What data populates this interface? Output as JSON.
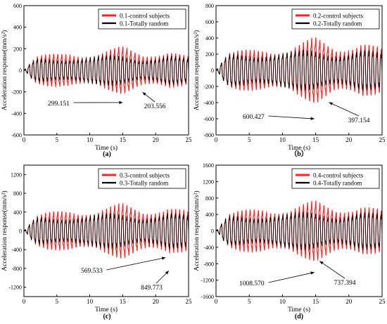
{
  "chart_data": [
    {
      "type": "line",
      "panel_label": "(a)",
      "xlabel": "Time (s)",
      "ylabel": "Acceleration response(mm/s²)",
      "xlim": [
        0,
        25
      ],
      "ylim": [
        -600,
        600
      ],
      "xticks": [
        0,
        5,
        10,
        15,
        20,
        25
      ],
      "yticks": [
        -600,
        -400,
        -200,
        0,
        200,
        400,
        600
      ],
      "legend_position": "top-right",
      "series": [
        {
          "name": "0.1-control subjects",
          "color": "#ff2020",
          "peak_envelope": [
            [
              0,
              40
            ],
            [
              2,
              150
            ],
            [
              7,
              240
            ],
            [
              11,
              200
            ],
            [
              15,
              270
            ],
            [
              18,
              210
            ],
            [
              22,
              260
            ],
            [
              25,
              150
            ]
          ]
        },
        {
          "name": "0.1-Totally random",
          "color": "#000000",
          "peak_envelope": [
            [
              0,
              30
            ],
            [
              2,
              130
            ],
            [
              7,
              170
            ],
            [
              11,
              160
            ],
            [
              15,
              180
            ],
            [
              18,
              160
            ],
            [
              22,
              175
            ],
            [
              25,
              130
            ]
          ]
        }
      ],
      "annotations": [
        {
          "text": "299.151",
          "x": 15.0,
          "y": -299.151
        },
        {
          "text": "203.556",
          "x": 18.0,
          "y": -203.556
        }
      ]
    },
    {
      "type": "line",
      "panel_label": "（b）",
      "xlabel": "Time (s)",
      "ylabel": "Acceleration response(mm/s²)",
      "xlim": [
        0,
        25
      ],
      "ylim": [
        -800,
        800
      ],
      "xticks": [
        0,
        5,
        10,
        15,
        20,
        25
      ],
      "yticks": [
        -800,
        -600,
        -400,
        -200,
        0,
        200,
        400,
        600,
        800
      ],
      "legend_position": "top-right",
      "series": [
        {
          "name": "0.2-control subjects",
          "color": "#ff2020",
          "peak_envelope": [
            [
              0,
              60
            ],
            [
              2,
              250
            ],
            [
              7,
              400
            ],
            [
              11,
              350
            ],
            [
              15,
              500
            ],
            [
              18,
              380
            ],
            [
              22,
              520
            ],
            [
              25,
              320
            ]
          ]
        },
        {
          "name": "0.2-Totally random",
          "color": "#000000",
          "peak_envelope": [
            [
              0,
              40
            ],
            [
              2,
              250
            ],
            [
              7,
              300
            ],
            [
              11,
              280
            ],
            [
              15,
              330
            ],
            [
              18,
              300
            ],
            [
              22,
              330
            ],
            [
              25,
              250
            ]
          ]
        }
      ],
      "annotations": [
        {
          "text": "600.427",
          "x": 14.8,
          "y": -600.427
        },
        {
          "text": "397.154",
          "x": 17.0,
          "y": -397.154
        }
      ]
    },
    {
      "type": "line",
      "panel_label": "(c)",
      "xlabel": "Time (s)",
      "ylabel": "Acceleration response(mm/s²)",
      "xlim": [
        0,
        25
      ],
      "ylim": [
        -1400,
        1400
      ],
      "xticks": [
        0,
        5,
        10,
        15,
        20,
        25
      ],
      "yticks": [
        -1200,
        -800,
        -400,
        0,
        400,
        800,
        1200
      ],
      "legend_position": "top-right",
      "series": [
        {
          "name": "0.3-control subjects",
          "color": "#ff2020",
          "peak_envelope": [
            [
              0,
              80
            ],
            [
              2,
              380
            ],
            [
              7,
              680
            ],
            [
              11,
              560
            ],
            [
              15,
              720
            ],
            [
              18,
              600
            ],
            [
              22,
              760
            ],
            [
              25,
              500
            ]
          ]
        },
        {
          "name": "0.3-Totally random",
          "color": "#000000",
          "peak_envelope": [
            [
              0,
              60
            ],
            [
              2,
              350
            ],
            [
              7,
              450
            ],
            [
              11,
              430
            ],
            [
              15,
              480
            ],
            [
              18,
              450
            ],
            [
              22,
              500
            ],
            [
              25,
              400
            ]
          ]
        }
      ],
      "annotations": [
        {
          "text": "569.533",
          "x": 21.5,
          "y": -569.533
        },
        {
          "text": "849.773",
          "x": 22.0,
          "y": -849.773
        }
      ]
    },
    {
      "type": "line",
      "panel_label": "(d)",
      "xlabel": "Time (s)",
      "ylabel": "Acceleration response(mm/s²)",
      "xlim": [
        0,
        25
      ],
      "ylim": [
        -1600,
        1600
      ],
      "xticks": [
        0,
        5,
        10,
        15,
        20,
        25
      ],
      "yticks": [
        -1600,
        -1200,
        -800,
        -400,
        0,
        400,
        800,
        1200,
        1600
      ],
      "legend_position": "top-right",
      "series": [
        {
          "name": "0.4-control subjects",
          "color": "#ff2020",
          "peak_envelope": [
            [
              0,
              100
            ],
            [
              2,
              480
            ],
            [
              7,
              850
            ],
            [
              11,
              700
            ],
            [
              15,
              900
            ],
            [
              18,
              750
            ],
            [
              22,
              930
            ],
            [
              25,
              600
            ]
          ]
        },
        {
          "name": "0.4-Totally random",
          "color": "#000000",
          "peak_envelope": [
            [
              0,
              80
            ],
            [
              2,
              450
            ],
            [
              7,
              560
            ],
            [
              11,
              530
            ],
            [
              15,
              600
            ],
            [
              18,
              560
            ],
            [
              22,
              600
            ],
            [
              25,
              480
            ]
          ]
        }
      ],
      "annotations": [
        {
          "text": "1008.570",
          "x": 14.8,
          "y": -1008.57
        },
        {
          "text": "737.394",
          "x": 15.6,
          "y": -737.394
        }
      ]
    }
  ]
}
